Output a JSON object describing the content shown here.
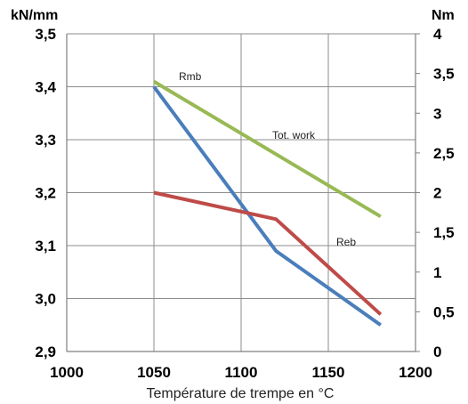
{
  "chart_data": {
    "type": "line",
    "title": "",
    "xlabel": "Température de trempe en °C",
    "ylabel": "kN/mm",
    "y2label": "Nm",
    "xlim": [
      1000,
      1200
    ],
    "ylim": [
      2.9,
      3.5
    ],
    "y2lim": [
      0,
      4
    ],
    "x_ticks": [
      "1000",
      "1050",
      "1100",
      "1150",
      "1200"
    ],
    "y_ticks": [
      "2,9",
      "3,0",
      "3,1",
      "3,2",
      "3,3",
      "3,4",
      "3,5"
    ],
    "y2_ticks": [
      "0",
      "0,5",
      "1",
      "1,5",
      "2",
      "2,5",
      "3",
      "3,5",
      "4"
    ],
    "grid": true,
    "legend": "none",
    "series": [
      {
        "name": "Rmb",
        "axis": "left",
        "color": "#4a7ebb",
        "x": [
          1050,
          1120,
          1180
        ],
        "values": [
          3.4,
          3.09,
          2.95
        ]
      },
      {
        "name": "Reb",
        "axis": "left",
        "color": "#be4b48",
        "x": [
          1050,
          1120,
          1180
        ],
        "values": [
          3.2,
          3.15,
          2.97
        ]
      },
      {
        "name": "Tot. work",
        "axis": "right",
        "color": "#98b954",
        "x": [
          1050,
          1180
        ],
        "values": [
          3.4,
          1.7
        ]
      }
    ]
  }
}
